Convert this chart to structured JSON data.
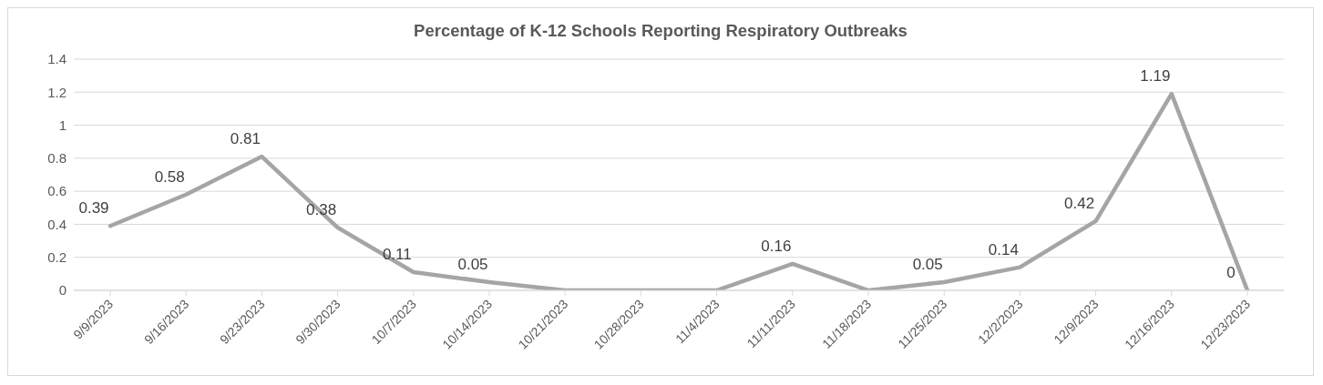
{
  "chart_data": {
    "type": "line",
    "title": "Percentage of K-12 Schools Reporting Respiratory Outbreaks",
    "categories": [
      "9/9/2023",
      "9/16/2023",
      "9/23/2023",
      "9/30/2023",
      "10/7/2023",
      "10/14/2023",
      "10/21/2023",
      "10/28/2023",
      "11/4/2023",
      "11/11/2023",
      "11/18/2023",
      "11/25/2023",
      "12/2/2023",
      "12/9/2023",
      "12/16/2023",
      "12/23/2023"
    ],
    "series": [
      {
        "color": "#a5a5a5",
        "values": [
          0.39,
          0.58,
          0.81,
          0.38,
          0.11,
          0.05,
          0,
          0,
          0,
          0.16,
          0,
          0.05,
          0.14,
          0.42,
          1.19,
          0
        ],
        "value_labels": [
          "0.39",
          "0.58",
          "0.81",
          "0.38",
          "0.11",
          "0.05",
          null,
          null,
          null,
          "0.16",
          null,
          "0.05",
          "0.14",
          "0.42",
          "1.19",
          "0"
        ]
      }
    ],
    "ylim": [
      0,
      1.4
    ],
    "yticks": [
      0,
      0.2,
      0.4,
      0.6,
      0.8,
      1,
      1.2,
      1.4
    ],
    "grid": "y",
    "marker": "none",
    "line_style": "solid"
  }
}
